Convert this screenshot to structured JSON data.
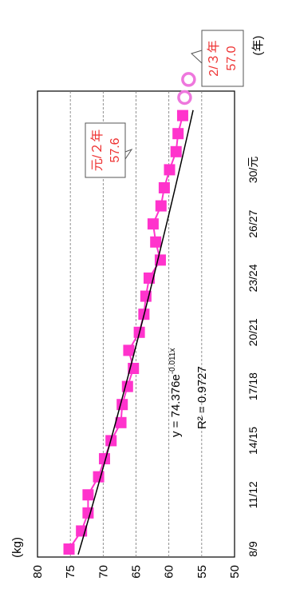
{
  "chart_data": {
    "type": "scatter",
    "orientation": "rotated-90-ccw",
    "ylabel": "(kg)",
    "xlabel": "(年)",
    "ylim": [
      50,
      80
    ],
    "yticks": [
      50,
      55,
      60,
      65,
      70,
      75,
      80
    ],
    "grid": "horizontal dashed",
    "xticks": [
      "8/9",
      "11/12",
      "14/15",
      "17/18",
      "20/21",
      "23/24",
      "26/27",
      "30/元"
    ],
    "series": [
      {
        "color": "#ff33cc",
        "marker": "square",
        "x": [
          0,
          1,
          2,
          3,
          4,
          5,
          6,
          7,
          8,
          9,
          10,
          11,
          12,
          13,
          14,
          15,
          16,
          17,
          18,
          19,
          20,
          21,
          22,
          23,
          24
        ],
        "values": [
          75.2,
          73.3,
          72.3,
          72.3,
          70.7,
          69.8,
          68.8,
          67.3,
          67.1,
          66.3,
          65.4,
          66.1,
          64.5,
          63.8,
          63.5,
          63.0,
          61.3,
          62.0,
          62.4,
          61.2,
          60.7,
          59.9,
          58.9,
          58.6,
          57.9
        ]
      }
    ],
    "trendline": {
      "equation_prefix": "y = 74.376e",
      "equation_exponent": "-0.011x",
      "r2": "R² = 0.9727",
      "color": "#000000",
      "a": 74.376,
      "b": -0.011
    },
    "annotations": [
      {
        "text1": "元/２年",
        "text2": "57.6",
        "x": 25,
        "value": 57.6,
        "color": "#ee3333"
      },
      {
        "text1": "2/３年",
        "text2": "57.0",
        "x": 26,
        "value": 57.0,
        "color": "#ee3333"
      }
    ]
  }
}
